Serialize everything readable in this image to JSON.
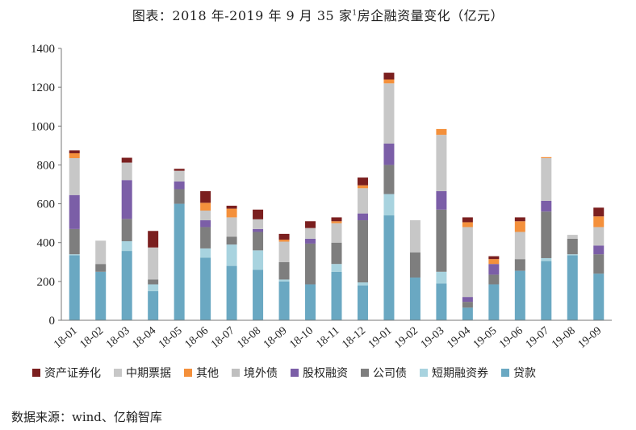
{
  "title_main": "图表：2018 年-2019 年 9 月 35 家",
  "title_sup": "1",
  "title_tail": "房企融资量变化（亿元）",
  "source": "数据来源：wind、亿翰智库",
  "chart_data": {
    "type": "bar",
    "stacked": true,
    "ylim": [
      0,
      1400
    ],
    "yticks": [
      0,
      200,
      400,
      600,
      800,
      1000,
      1200,
      1400
    ],
    "categories": [
      "18-01",
      "18-02",
      "18-03",
      "18-04",
      "18-05",
      "18-06",
      "18-07",
      "18-08",
      "18-09",
      "18-10",
      "18-11",
      "18-12",
      "19-01",
      "19-02",
      "19-03",
      "19-04",
      "19-05",
      "19-06",
      "19-07",
      "19-08",
      "19-09"
    ],
    "series": [
      {
        "name": "贷款",
        "color": "#6aa8c2",
        "values": [
          335,
          250,
          357,
          150,
          600,
          322,
          280,
          260,
          200,
          185,
          250,
          180,
          540,
          220,
          190,
          65,
          185,
          255,
          305,
          335,
          240
        ]
      },
      {
        "name": "短期融资券",
        "color": "#a8d3df",
        "values": [
          5,
          0,
          50,
          35,
          0,
          48,
          110,
          100,
          10,
          0,
          40,
          15,
          110,
          0,
          60,
          0,
          0,
          0,
          15,
          5,
          0
        ]
      },
      {
        "name": "公司债",
        "color": "#7e7e7e",
        "values": [
          130,
          40,
          115,
          25,
          75,
          110,
          40,
          95,
          90,
          210,
          110,
          320,
          150,
          130,
          320,
          30,
          50,
          60,
          240,
          80,
          100
        ]
      },
      {
        "name": "股权融资",
        "color": "#7b5ea7",
        "values": [
          175,
          0,
          200,
          0,
          40,
          35,
          0,
          15,
          0,
          25,
          0,
          35,
          110,
          0,
          95,
          25,
          55,
          0,
          55,
          0,
          45
        ]
      },
      {
        "name": "境外债",
        "color": "#bfbfbf",
        "values": [
          0,
          0,
          0,
          0,
          0,
          0,
          0,
          0,
          0,
          0,
          0,
          0,
          0,
          0,
          0,
          0,
          0,
          0,
          0,
          0,
          0
        ]
      },
      {
        "name": "中期票据",
        "color": "#c7c7c7",
        "values": [
          190,
          120,
          90,
          165,
          55,
          50,
          100,
          50,
          105,
          55,
          100,
          130,
          310,
          165,
          290,
          360,
          0,
          140,
          220,
          20,
          95
        ]
      },
      {
        "name": "其他",
        "color": "#f4903b",
        "values": [
          25,
          0,
          0,
          0,
          0,
          40,
          45,
          0,
          10,
          0,
          10,
          15,
          20,
          0,
          30,
          25,
          25,
          55,
          5,
          0,
          55
        ]
      },
      {
        "name": "资产证券化",
        "color": "#7b1f1f",
        "values": [
          15,
          0,
          25,
          85,
          10,
          60,
          15,
          50,
          30,
          35,
          20,
          40,
          35,
          0,
          0,
          25,
          15,
          20,
          0,
          0,
          45
        ]
      }
    ],
    "legend_order": [
      "资产证券化",
      "中期票据",
      "其他",
      "境外债",
      "股权融资",
      "公司债",
      "短期融资券",
      "贷款"
    ]
  }
}
